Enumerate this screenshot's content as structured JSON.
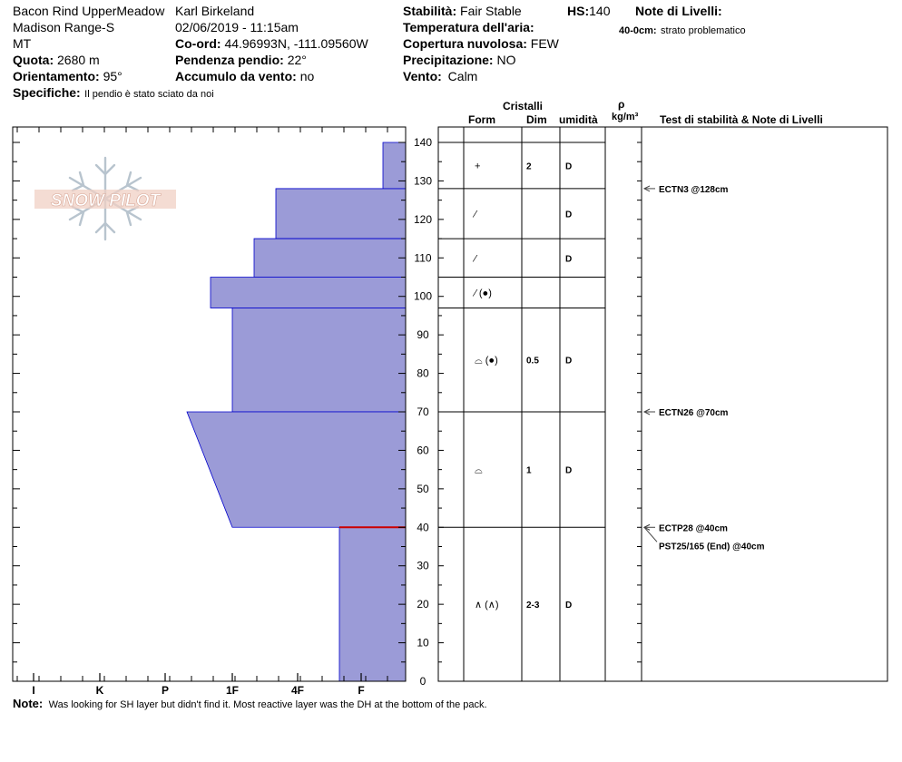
{
  "header": {
    "site": "Bacon Rind UpperMeadow",
    "range": "Madison Range-S",
    "state": "MT",
    "observer": "Karl Birkeland",
    "datetime": "02/06/2019 - 11:15am",
    "quota_label": "Quota:",
    "quota_value": "2680 m",
    "orient_label": "Orientamento:",
    "orient_value": "95°",
    "coord_label": "Co-ord:",
    "coord_value": "44.96993N, -111.09560W",
    "pend_label": "Pendenza pendio:",
    "pend_value": "22°",
    "accum_label": "Accumulo da vento:",
    "accum_value": "no",
    "spec_label": "Specifiche:",
    "spec_value": "Il pendio è stato sciato da noi",
    "stab_label": "Stabilità:",
    "stab_value": "Fair Stable",
    "hs_label": "HS:",
    "hs_value": "140",
    "temp_label": "Temperatura dell'aria:",
    "cop_label": "Copertura nuvolosa:",
    "cop_value": "FEW",
    "prec_label": "Precipitazione:",
    "prec_value": "NO",
    "vento_label": "Vento:",
    "vento_value": "Calm",
    "note_livelli_label": "Note di Livelli:",
    "note_livelli_depth": "40-0cm:",
    "note_livelli_text": "strato problematico"
  },
  "logo_text": "SNOW PILOT",
  "columns": {
    "cristalli": "Cristalli",
    "form": "Form",
    "dim": "Dim",
    "umidita": "umidità",
    "rho": "ρ",
    "rho_unit": "kg/m³",
    "tests": "Test di stabilità & Note di Livelli"
  },
  "footer": {
    "note_label": "Note:",
    "note_text": "Was looking for SH layer but didn't find it.  Most reactive layer was the DH at the bottom of the pack."
  },
  "chart_data": {
    "type": "area",
    "title": "",
    "xlabel": "",
    "ylabel": "",
    "ylim": [
      0,
      140
    ],
    "y_ticks": [
      0,
      10,
      20,
      30,
      40,
      50,
      60,
      70,
      80,
      90,
      100,
      110,
      120,
      130,
      140
    ],
    "x_categories": [
      "I",
      "K",
      "P",
      "1F",
      "4F",
      "F"
    ],
    "colors": {
      "layer_fill": "#9b9bd7",
      "layer_edge": "#0000cc",
      "weak_layer": "#cc0000"
    },
    "hardness_profile": [
      {
        "top": 140,
        "bottom": 128,
        "hardness_top": "F+",
        "hardness_bottom": "F+"
      },
      {
        "top": 128,
        "bottom": 115,
        "hardness_top": "4F-",
        "hardness_bottom": "4F-"
      },
      {
        "top": 115,
        "bottom": 105,
        "hardness_top": "1F+",
        "hardness_bottom": "1F+"
      },
      {
        "top": 105,
        "bottom": 97,
        "hardness_top": "1F-",
        "hardness_bottom": "1F-"
      },
      {
        "top": 97,
        "bottom": 70,
        "hardness_top": "1F",
        "hardness_bottom": "1F"
      },
      {
        "top": 70,
        "bottom": 40,
        "hardness_top": "P+",
        "hardness_bottom": "1F"
      },
      {
        "top": 40,
        "bottom": 0,
        "hardness_top": "F-",
        "hardness_bottom": "F-"
      }
    ],
    "layers": [
      {
        "top": 140,
        "bottom": 128,
        "form": "+",
        "dim": "2",
        "wet": "D"
      },
      {
        "top": 128,
        "bottom": 115,
        "form": "⁄",
        "dim": "",
        "wet": "D"
      },
      {
        "top": 115,
        "bottom": 105,
        "form": "⁄",
        "dim": "",
        "wet": "D"
      },
      {
        "top": 105,
        "bottom": 97,
        "form": "⁄ (●)",
        "dim": "",
        "wet": ""
      },
      {
        "top": 97,
        "bottom": 70,
        "form": "⌓ (●)",
        "dim": "0.5",
        "wet": "D"
      },
      {
        "top": 70,
        "bottom": 40,
        "form": "⌓",
        "dim": "1",
        "wet": "D"
      },
      {
        "top": 40,
        "bottom": 0,
        "form": "∧ (∧)",
        "dim": "2-3",
        "wet": "D"
      }
    ],
    "tests": [
      {
        "depth": 128,
        "label": "ECTN3 @128cm"
      },
      {
        "depth": 70,
        "label": "ECTN26 @70cm"
      },
      {
        "depth": 40,
        "label": "ECTP28 @40cm"
      },
      {
        "depth": 40,
        "label": "PST25/165 (End) @40cm"
      }
    ]
  }
}
